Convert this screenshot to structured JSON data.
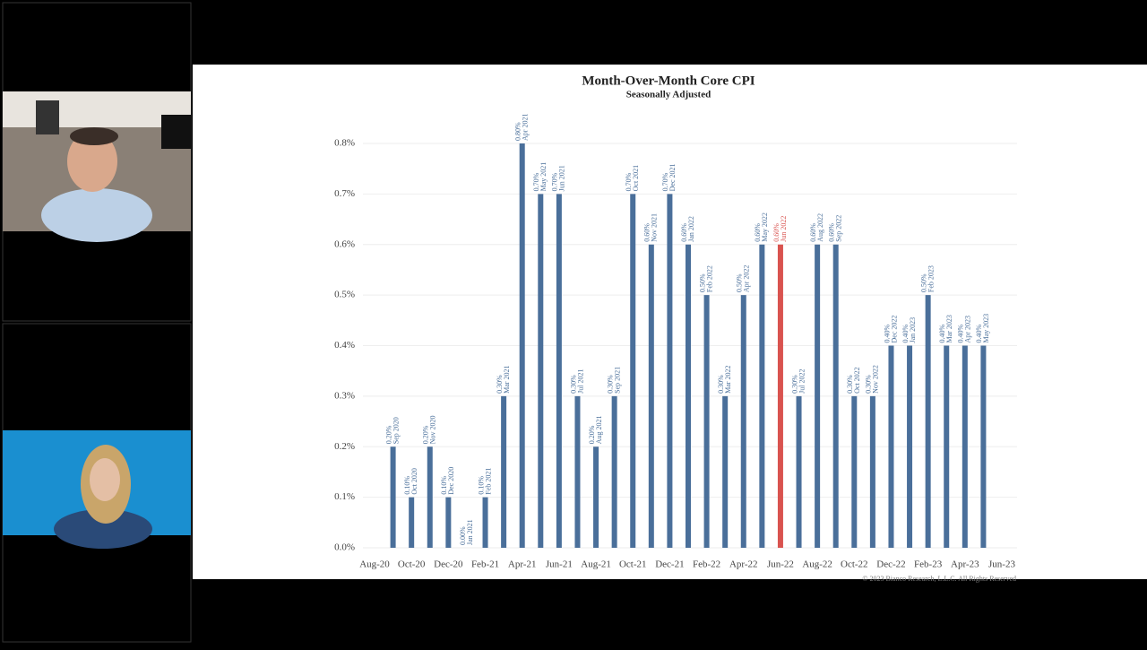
{
  "chart_data": {
    "type": "bar",
    "title": "Month-Over-Month Core CPI",
    "subtitle": "Seasonally Adjusted",
    "categories": [
      "Aug-20",
      null,
      "Oct-20",
      null,
      "Dec-20",
      null,
      "Feb-21",
      null,
      "Apr-21",
      null,
      "Jun-21",
      null,
      "Aug-21",
      null,
      "Oct-21",
      null,
      "Dec-21",
      null,
      "Feb-22",
      null,
      "Apr-22",
      null,
      "Jun-22",
      null,
      "Aug-22",
      null,
      "Oct-22",
      null,
      "Dec-22",
      null,
      "Feb-23",
      null,
      "Apr-23",
      null,
      "Jun-23"
    ],
    "values": [
      null,
      0.2,
      0.1,
      0.2,
      0.1,
      0,
      0.1,
      0.3,
      0.8,
      0.7,
      0.7,
      0.3,
      0.2,
      0.3,
      0.7,
      0.6,
      0.7,
      0.6,
      0.5,
      0.3,
      0.5,
      0.6,
      0.6,
      0.3,
      0.6,
      0.6,
      0.3,
      0.3,
      0.4,
      0.4,
      0.5,
      0.4,
      0.4,
      0.4,
      null
    ],
    "value_labels": [
      null,
      "0.20%",
      "0.10%",
      "0.20%",
      "0.10%",
      "0.00%",
      "0.10%",
      "0.30%",
      "0.80%",
      "0.70%",
      "0.70%",
      "0.30%",
      "0.20%",
      "0.30%",
      "0.70%",
      "0.60%",
      "0.70%",
      "0.60%",
      "0.50%",
      "0.30%",
      "0.50%",
      "0.60%",
      "0.60%",
      "0.30%",
      "0.60%",
      "0.60%",
      "0.30%",
      "0.30%",
      "0.40%",
      "0.40%",
      "0.50%",
      "0.40%",
      "0.40%",
      "0.40%",
      null
    ],
    "bar_labels": [
      null,
      "Sep 2020",
      "Oct 2020",
      "Nov 2020",
      "Dec 2020",
      "Jan 2021",
      "Feb 2021",
      "Mar 2021",
      "Apr 2021",
      "May 2021",
      "Jun 2021",
      "Jul 2021",
      "Aug 2021",
      "Sep 2021",
      "Oct 2021",
      "Nov 2021",
      "Dec 2021",
      "Jan 2022",
      "Feb 2022",
      "Mar 2022",
      "Apr 2022",
      "May 2022",
      "Jun 2022",
      "Jul 2022",
      "Aug 2022",
      "Sep 2022",
      "Oct 2022",
      "Nov 2022",
      "Dec 2022",
      "Jan 2023",
      "Feb 2023",
      "Mar 2023",
      "Apr 2023",
      "May 2023",
      null
    ],
    "colors": [
      null,
      "#4a6f9a",
      "#4a6f9a",
      "#4a6f9a",
      "#4a6f9a",
      "#4a6f9a",
      "#4a6f9a",
      "#4a6f9a",
      "#4a6f9a",
      "#4a6f9a",
      "#4a6f9a",
      "#4a6f9a",
      "#4a6f9a",
      "#4a6f9a",
      "#4a6f9a",
      "#4a6f9a",
      "#4a6f9a",
      "#4a6f9a",
      "#4a6f9a",
      "#4a6f9a",
      "#4a6f9a",
      "#4a6f9a",
      "#d9534f",
      "#4a6f9a",
      "#4a6f9a",
      "#4a6f9a",
      "#4a6f9a",
      "#4a6f9a",
      "#4a6f9a",
      "#4a6f9a",
      "#4a6f9a",
      "#4a6f9a",
      "#4a6f9a",
      "#4a6f9a",
      null
    ],
    "ylim": [
      0,
      0.8
    ],
    "yticks": [
      {
        "value": 0,
        "label": "0.0%"
      },
      {
        "value": 0.1,
        "label": "0.1%"
      },
      {
        "value": 0.2,
        "label": "0.2%"
      },
      {
        "value": 0.3,
        "label": "0.3%"
      },
      {
        "value": 0.4,
        "label": "0.4%"
      },
      {
        "value": 0.5,
        "label": "0.5%"
      },
      {
        "value": 0.6,
        "label": "0.6%"
      },
      {
        "value": 0.7,
        "label": "0.7%"
      },
      {
        "value": 0.8,
        "label": "0.8%"
      }
    ],
    "grid": true,
    "copyright": "© 2023 Bianco Research, L.L.C. All Rights Reserved"
  }
}
